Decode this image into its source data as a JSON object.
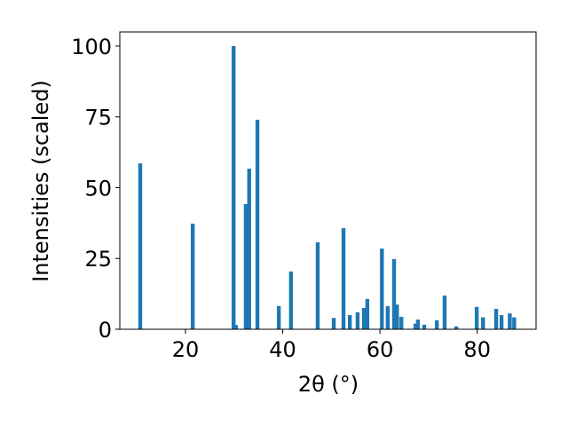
{
  "chart_data": {
    "type": "bar",
    "x_label": "2θ (°)",
    "y_label": "Intensities (scaled)",
    "x": [
      10.7,
      21.5,
      29.9,
      30.4,
      32.4,
      33.1,
      34.8,
      39.2,
      41.7,
      47.2,
      50.5,
      52.5,
      53.8,
      55.4,
      56.7,
      57.4,
      60.4,
      61.6,
      62.9,
      63.5,
      64.4,
      67.3,
      67.8,
      69.1,
      71.7,
      73.3,
      75.7,
      79.9,
      81.2,
      83.9,
      85.0,
      86.7,
      87.6
    ],
    "values": [
      58.6,
      37.3,
      100,
      1.5,
      44.2,
      56.7,
      74,
      8.2,
      20.4,
      30.7,
      4,
      35.7,
      5,
      6,
      7.5,
      10.7,
      28.5,
      8.2,
      24.8,
      8.7,
      4.4,
      2,
      3.4,
      1.6,
      3.2,
      11.9,
      1,
      7.9,
      4.2,
      7.2,
      5,
      5.6,
      4.2
    ],
    "bar_width": 0.8,
    "color": "#1f77b4",
    "xlim": [
      6.5,
      92.1
    ],
    "xticks": [
      20,
      40,
      60,
      80
    ],
    "ylim": [
      0,
      105
    ],
    "yticks": [
      0,
      25,
      50,
      75,
      100
    ]
  }
}
